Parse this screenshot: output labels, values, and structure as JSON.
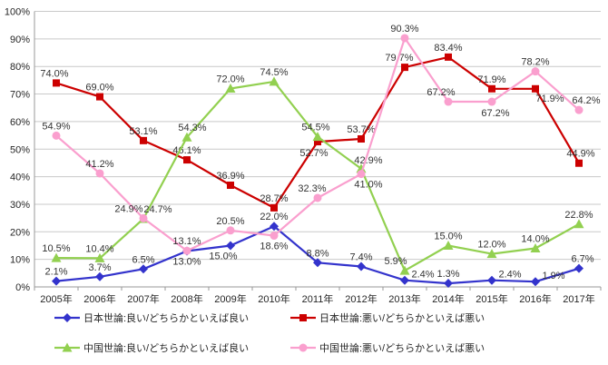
{
  "chart_data": {
    "type": "line",
    "title": "",
    "xlabel": "",
    "ylabel": "",
    "categories": [
      "2005年",
      "2006年",
      "2007年",
      "2008年",
      "2009年",
      "2010年",
      "2011年",
      "2012年",
      "2013年",
      "2014年",
      "2015年",
      "2016年",
      "2017年"
    ],
    "series": [
      {
        "name": "日本世論:良い/どちらかといえば良い",
        "color": "#3333CC",
        "marker": "diamond",
        "values": [
          2.1,
          3.7,
          6.5,
          13.0,
          15.0,
          22.0,
          8.8,
          7.4,
          2.4,
          1.3,
          2.4,
          1.9,
          6.7
        ]
      },
      {
        "name": "日本世論:悪い/どちらかといえば悪い",
        "color": "#CC0000",
        "marker": "square",
        "values": [
          74.0,
          69.0,
          53.1,
          46.1,
          36.9,
          28.7,
          52.7,
          53.7,
          79.7,
          83.4,
          71.9,
          71.9,
          44.9
        ]
      },
      {
        "name": "中国世論:良い/どちらかといえば良い",
        "color": "#92D050",
        "marker": "triangle",
        "values": [
          10.5,
          10.4,
          24.7,
          54.3,
          72.0,
          74.5,
          54.5,
          42.9,
          5.9,
          15.0,
          12.0,
          14.0,
          22.8
        ]
      },
      {
        "name": "中国世論:悪い/どちらかといえば悪い",
        "color": "#FA9FCE",
        "marker": "circle",
        "values": [
          54.9,
          41.2,
          24.9,
          13.1,
          20.5,
          18.6,
          32.3,
          41.0,
          90.3,
          67.2,
          67.2,
          78.2,
          64.2
        ]
      }
    ],
    "ylim": [
      0,
      100
    ],
    "ytick_step": 10,
    "ytick_suffix": "%",
    "value_label_suffix": "%",
    "value_label_decimals": 1,
    "grid": true,
    "legend_position": "bottom",
    "legend_rows": [
      [
        0,
        1
      ],
      [
        2,
        3
      ]
    ]
  },
  "colors": {
    "background": "#FFFFFF",
    "gridline": "#C9C9C9",
    "axis": "#999999",
    "tick_text": "#262626",
    "data_label_text": "#333333"
  }
}
